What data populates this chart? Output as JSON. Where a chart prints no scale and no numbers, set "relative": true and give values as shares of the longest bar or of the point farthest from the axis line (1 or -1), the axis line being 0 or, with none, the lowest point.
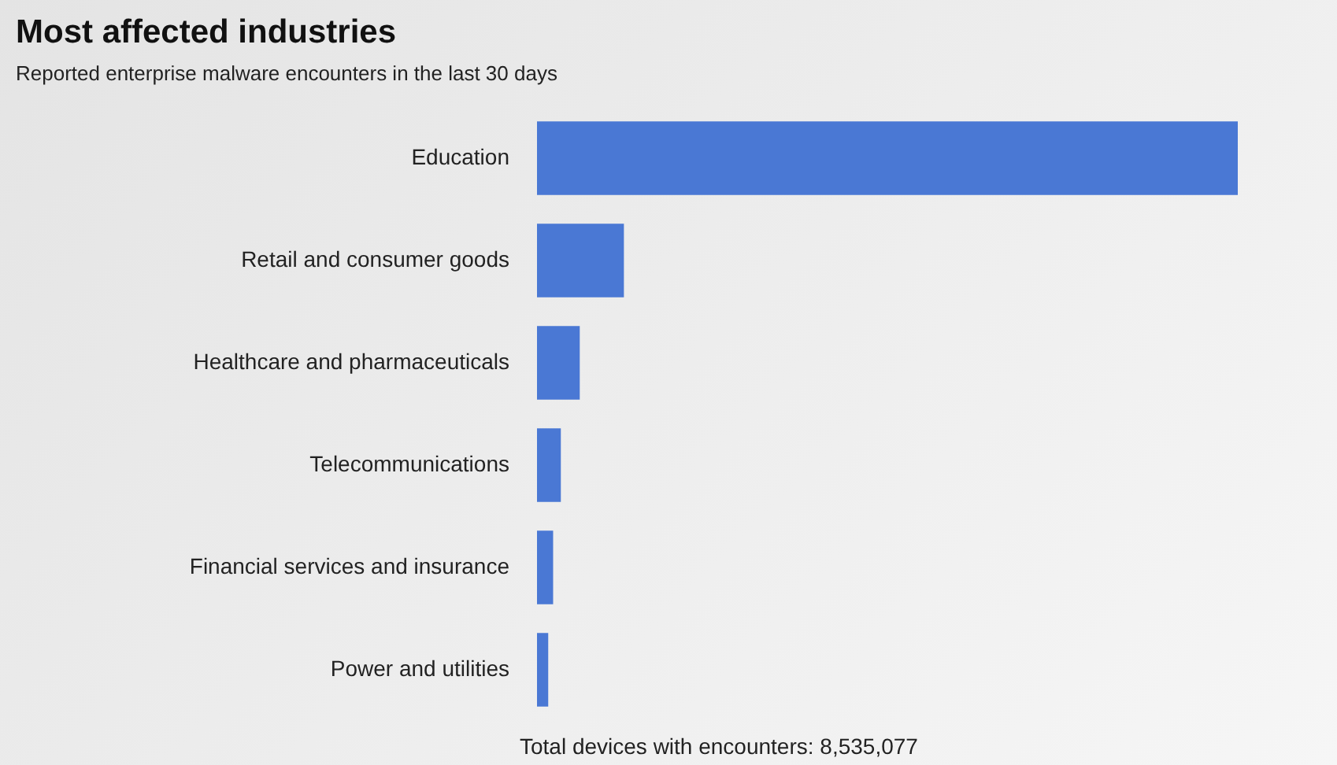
{
  "chart_data": {
    "type": "bar",
    "orientation": "horizontal",
    "relative": true,
    "title": "Most affected industries",
    "subtitle": "Reported enterprise malware encounters in the last 30 days",
    "categories": [
      "Education",
      "Retail and consumer goods",
      "Healthcare and pharmaceuticals",
      "Telecommunications",
      "Financial services and insurance",
      "Power and utilities"
    ],
    "values": [
      1,
      0.124,
      0.061,
      0.034,
      0.023,
      0.016
    ],
    "color": "#4a78d4",
    "annotations": [
      "Total devices with encounters: 8,535,077"
    ]
  }
}
